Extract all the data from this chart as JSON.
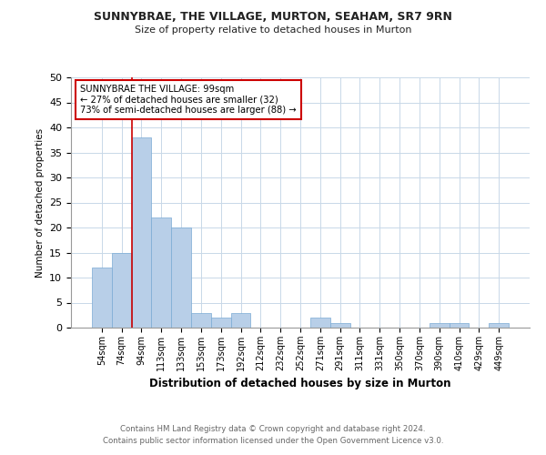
{
  "title_line1": "SUNNYBRAE, THE VILLAGE, MURTON, SEAHAM, SR7 9RN",
  "title_line2": "Size of property relative to detached houses in Murton",
  "xlabel": "Distribution of detached houses by size in Murton",
  "ylabel": "Number of detached properties",
  "categories": [
    "54sqm",
    "74sqm",
    "94sqm",
    "113sqm",
    "133sqm",
    "153sqm",
    "173sqm",
    "192sqm",
    "212sqm",
    "232sqm",
    "252sqm",
    "271sqm",
    "291sqm",
    "311sqm",
    "331sqm",
    "350sqm",
    "370sqm",
    "390sqm",
    "410sqm",
    "429sqm",
    "449sqm"
  ],
  "values": [
    12,
    15,
    38,
    22,
    20,
    3,
    2,
    3,
    0,
    0,
    0,
    2,
    1,
    0,
    0,
    0,
    0,
    1,
    1,
    0,
    1
  ],
  "bar_color": "#b8cfe8",
  "bar_edge_color": "#7aabd4",
  "ylim": [
    0,
    50
  ],
  "yticks": [
    0,
    5,
    10,
    15,
    20,
    25,
    30,
    35,
    40,
    45,
    50
  ],
  "property_line_index": 2,
  "annotation_line1": "SUNNYBRAE THE VILLAGE: 99sqm",
  "annotation_line2": "← 27% of detached houses are smaller (32)",
  "annotation_line3": "73% of semi-detached houses are larger (88) →",
  "annotation_box_color": "#ffffff",
  "annotation_box_edge_color": "#cc0000",
  "red_line_color": "#cc0000",
  "footer_line1": "Contains HM Land Registry data © Crown copyright and database right 2024.",
  "footer_line2": "Contains public sector information licensed under the Open Government Licence v3.0.",
  "background_color": "#ffffff",
  "grid_color": "#c8d8e8"
}
